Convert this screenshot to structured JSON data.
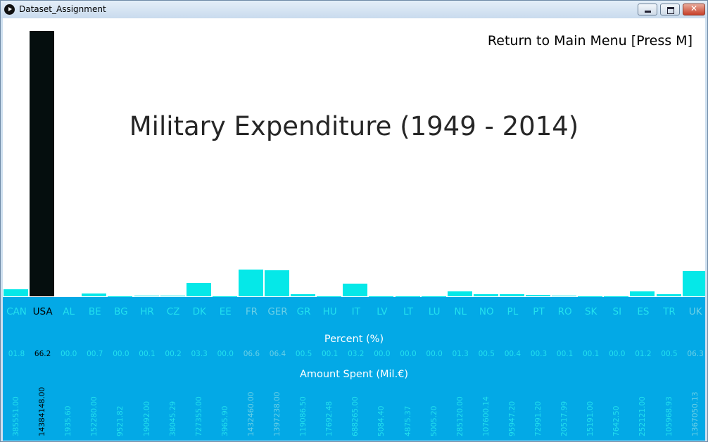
{
  "window": {
    "title": "Dataset_Assignment"
  },
  "header": {
    "return_label": "Return to Main Menu [Press M]"
  },
  "chart_data": {
    "type": "bar",
    "title": "Military Expenditure (1949 - 2014)",
    "categories": [
      "CAN",
      "USA",
      "AL",
      "BE",
      "BG",
      "HR",
      "CZ",
      "DK",
      "EE",
      "FR",
      "GER",
      "GR",
      "HU",
      "IT",
      "LV",
      "LT",
      "LU",
      "NL",
      "NO",
      "PL",
      "PT",
      "RO",
      "SK",
      "SI",
      "ES",
      "TR",
      "UK"
    ],
    "percent_label": "Percent (%)",
    "amount_label": "Amount Spent (Mil.€)",
    "percent": [
      "01.8",
      "66.2",
      "00.0",
      "00.7",
      "00.0",
      "00.1",
      "00.2",
      "03.3",
      "00.0",
      "06.6",
      "06.4",
      "00.5",
      "00.1",
      "03.2",
      "00.0",
      "00.0",
      "00.0",
      "01.3",
      "00.5",
      "00.4",
      "00.3",
      "00.1",
      "00.1",
      "00.0",
      "01.2",
      "00.5",
      "06.3"
    ],
    "amounts": [
      "385551.00",
      "14384148.00",
      "1935.60",
      "152280.00",
      "9521.82",
      "19092.00",
      "38045.29",
      "727355.00",
      "3965.90",
      "1432460.00",
      "1397238.00",
      "119086.50",
      "17692.48",
      "688265.00",
      "5084.40",
      "4875.37",
      "5005.20",
      "285120.00",
      "107600.14",
      "95947.20",
      "72991.20",
      "20517.99",
      "15191.00",
      "7642.50",
      "252121.00",
      "105968.93",
      "1367050.13"
    ],
    "values": [
      385551.0,
      14384148.0,
      1935.6,
      152280.0,
      9521.82,
      19092.0,
      38045.29,
      727355.0,
      3965.9,
      1432460.0,
      1397238.0,
      119086.5,
      17692.48,
      688265.0,
      5084.4,
      4875.37,
      5005.2,
      285120.0,
      107600.14,
      95947.2,
      72991.2,
      20517.99,
      15191.0,
      7642.5,
      252121.0,
      105968.93,
      1367050.13
    ],
    "selected_index": 1,
    "light_indices": [
      9,
      10,
      26
    ]
  },
  "colors": {
    "bar": "#05e8e8",
    "bar_selected": "#050e0e",
    "panel": "#03a9e6",
    "label": "#23e0ee",
    "label_faded": "#6ad0e6"
  }
}
